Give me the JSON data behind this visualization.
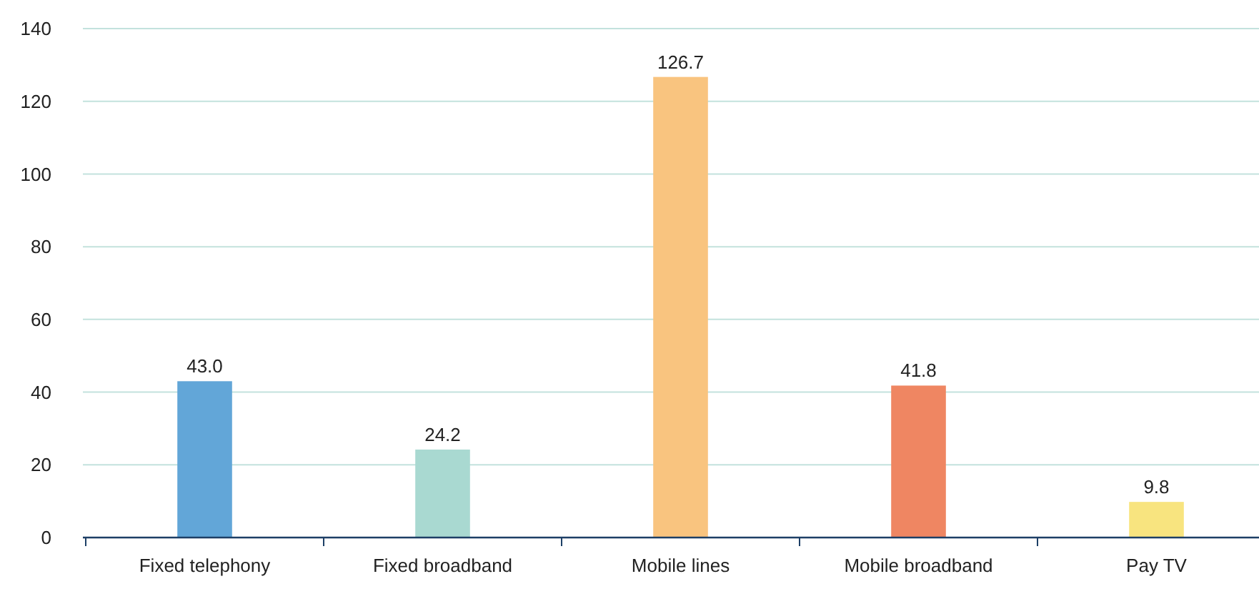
{
  "chart_data": {
    "type": "bar",
    "categories": [
      "Fixed telephony",
      "Fixed broadband",
      "Mobile lines",
      "Mobile broadband",
      "Pay TV"
    ],
    "values": [
      43.0,
      24.2,
      126.7,
      41.8,
      9.8
    ],
    "value_labels": [
      "43.0",
      "24.2",
      "126.7",
      "41.8",
      "9.8"
    ],
    "colors": [
      "#62a6d8",
      "#a9d9d1",
      "#f9c47f",
      "#ef8662",
      "#f8e47f"
    ],
    "ylim": [
      0,
      140
    ],
    "yticks": [
      0,
      20,
      40,
      60,
      80,
      100,
      120,
      140
    ],
    "grid": "y"
  }
}
